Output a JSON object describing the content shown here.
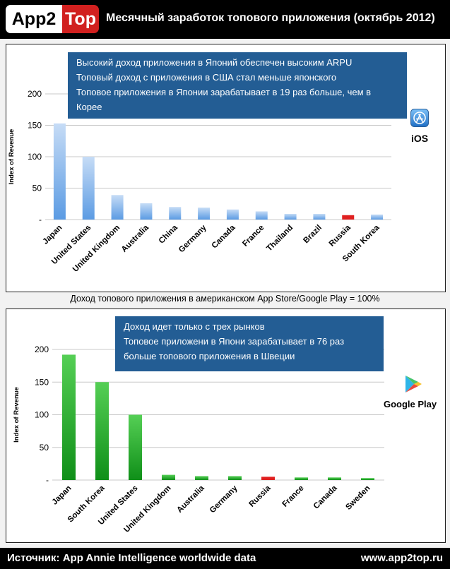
{
  "header": {
    "logo_left": "App2",
    "logo_right": "Top",
    "title": "Месячный заработок топового приложения (октябрь 2012)"
  },
  "ios_panel": {
    "info_lines": [
      "Высокий доход приложения в Японий обеспечен высоким ARPU",
      "Топовый доход с приложения в США стал меньше японского",
      "Топовое приложения в Японии зарабатывает в 19 раз больше, чем в",
      "Корее"
    ],
    "platform_label": "iOS"
  },
  "middle_caption": "Доход топового приложения в американском App Store/Google Play = 100%",
  "gp_panel": {
    "info_lines": [
      "Доход идет только с трех рынков",
      "Топовое приложени в Япони зарабатывает в 76 раз",
      "больше топового приложения в Швеции"
    ],
    "platform_label": "Google Play"
  },
  "footer": {
    "source": "Источник: App Annie Intelligence worldwide data",
    "site": "www.app2top.ru"
  },
  "colors": {
    "ios_bar": "#9cc2ec",
    "gp_bar": "#2aa82a",
    "highlight_bar": "#e02020",
    "info_box": "#235d94",
    "brand_red": "#d1201f"
  },
  "chart_data": [
    {
      "type": "bar",
      "title": "iOS",
      "ylabel": "Index of Revenue",
      "xlabel": "",
      "ylim": [
        0,
        200
      ],
      "yticks": [
        0,
        50,
        100,
        150,
        200
      ],
      "ytick_labels": [
        "-",
        "50",
        "100",
        "150",
        "200"
      ],
      "grid": true,
      "categories": [
        "Japan",
        "United States",
        "United Kingdom",
        "Australia",
        "China",
        "Germany",
        "Canada",
        "France",
        "Thailand",
        "Brazil",
        "Russia",
        "South Korea"
      ],
      "values": [
        153,
        100,
        39,
        26,
        20,
        19,
        16,
        13,
        9,
        9,
        7,
        8
      ],
      "highlight": [
        "Russia"
      ]
    },
    {
      "type": "bar",
      "title": "Google Play",
      "ylabel": "Index of Revenue",
      "xlabel": "",
      "ylim": [
        0,
        200
      ],
      "yticks": [
        0,
        50,
        100,
        150,
        200
      ],
      "ytick_labels": [
        "-",
        "50",
        "100",
        "150",
        "200"
      ],
      "grid": true,
      "categories": [
        "Japan",
        "South Korea",
        "United States",
        "United Kingdom",
        "Australia",
        "Germany",
        "Russia",
        "France",
        "Canada",
        "Sweden"
      ],
      "values": [
        192,
        150,
        100,
        8,
        6,
        6,
        5,
        4,
        4,
        3
      ],
      "highlight": [
        "Russia"
      ]
    }
  ]
}
